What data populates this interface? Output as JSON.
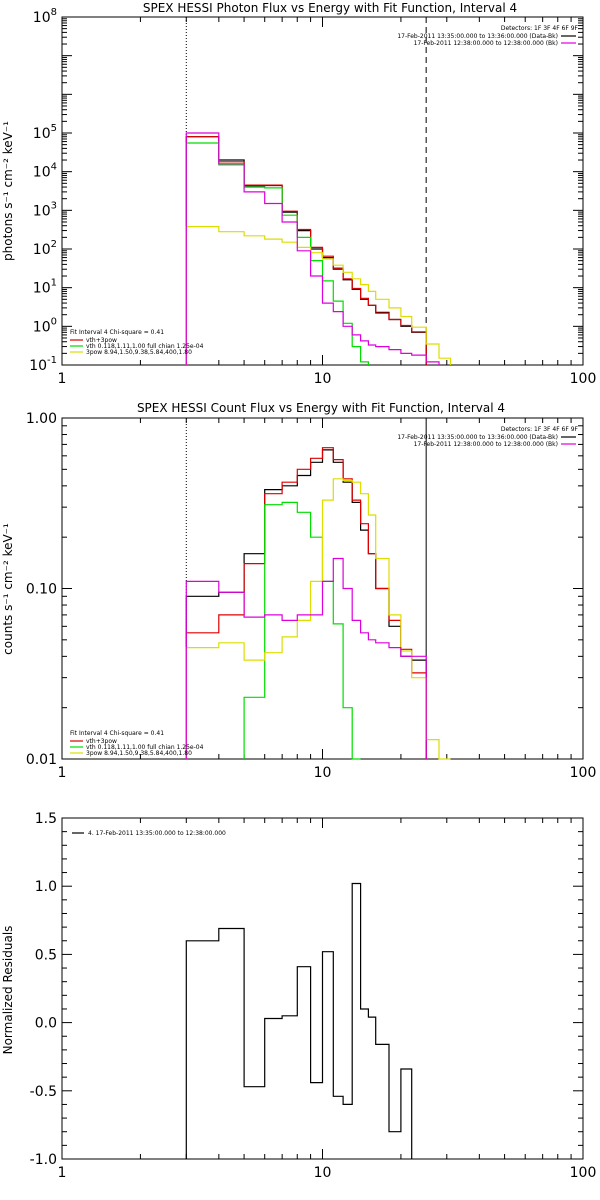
{
  "chart_data": [
    {
      "type": "line",
      "title": "SPEX HESSI Photon Flux vs Energy with Fit Function, Interval 4",
      "ylabel": "photons s⁻¹ cm⁻² keV⁻¹",
      "xlabel": "",
      "xscale": "log",
      "yscale": "log",
      "xlim": [
        1,
        100
      ],
      "ylim": [
        0.1,
        100000000
      ],
      "x_tick_labels": [
        "1",
        "10",
        "100"
      ],
      "y_tick_labels": [
        {
          "value": 0.1,
          "base": "10",
          "exp": "-1"
        },
        {
          "value": 1,
          "base": "10",
          "exp": "0"
        },
        {
          "value": 10,
          "base": "10",
          "exp": "1"
        },
        {
          "value": 100,
          "base": "10",
          "exp": "2"
        },
        {
          "value": 1000,
          "base": "10",
          "exp": "3"
        },
        {
          "value": 10000,
          "base": "10",
          "exp": "4"
        },
        {
          "value": 100000,
          "base": "10",
          "exp": "5"
        },
        {
          "value": 100000000,
          "base": "10",
          "exp": "8"
        }
      ],
      "vlines": [
        {
          "x": 3,
          "style": "dotted"
        },
        {
          "x": 25,
          "style": "dashed"
        }
      ],
      "bin_edges": [
        3,
        4,
        5,
        6,
        7,
        8,
        9,
        10,
        11,
        12,
        13,
        14,
        15,
        16,
        18,
        20,
        22,
        25,
        28,
        31
      ],
      "series": [
        {
          "name": "data",
          "color": "#000000",
          "values": [
            80000,
            20000,
            4300,
            4400,
            900,
            300,
            100,
            60,
            30,
            16,
            9,
            5,
            3.5,
            2.3,
            1.5,
            1.0,
            0.7,
            null,
            null
          ]
        },
        {
          "name": "vth+3pow",
          "color": "#dd0000",
          "values": [
            80000,
            18000,
            4500,
            4500,
            950,
            320,
            110,
            65,
            32,
            17,
            9.5,
            5.3,
            3.5,
            2.2,
            1.5,
            1.05,
            0.72,
            null,
            null
          ]
        },
        {
          "name": "vth 0.118,1.11,1.00 full chian 1.25e-04",
          "color": "#00dd00",
          "values": [
            55000,
            15000,
            4000,
            3800,
            750,
            200,
            50,
            15,
            4.5,
            1.2,
            0.3,
            0.12,
            null,
            null,
            null,
            null,
            null,
            null,
            null
          ]
        },
        {
          "name": "3pow 8.94,1.50,9.38,5.84,400,1.80",
          "color": "#dddd00",
          "values": [
            380,
            280,
            220,
            180,
            150,
            110,
            80,
            55,
            38,
            25,
            17,
            12,
            8,
            5,
            3,
            1.8,
            0.95,
            0.35,
            0.15
          ]
        },
        {
          "name": "",
          "color": "#dd00dd",
          "values": [
            100000,
            16000,
            3000,
            1500,
            500,
            90,
            20,
            4,
            2.4,
            1.0,
            0.6,
            0.42,
            0.33,
            0.3,
            0.25,
            0.2,
            0.18,
            0.12,
            null
          ]
        }
      ],
      "legend_header": "Detectors: 1F 3F 4F 6F 9F",
      "legend_times": [
        {
          "text": "17-Feb-2011 13:35:00.000 to 13:36:00.000 (Data-Bk)",
          "color": "#000000"
        },
        {
          "text": "17-Feb-2011 12:38:00.000 to 12:38:00.000 (Bk)",
          "color": "#dd00dd"
        }
      ],
      "fit_label": "Fit Interval 4    Chi-square = 0.41",
      "fit_legend": [
        {
          "text": "vth+3pow",
          "color": "#dd0000"
        },
        {
          "text": "vth 0.118,1.11,1.00  full chian 1.25e-04",
          "color": "#00dd00"
        },
        {
          "text": "3pow 8.94,1.50,9.38,5.84,400,1.80",
          "color": "#dddd00"
        }
      ]
    },
    {
      "type": "line",
      "title": "SPEX HESSI Count Flux vs Energy with Fit Function, Interval 4",
      "ylabel": "counts s⁻¹ cm⁻² keV⁻¹",
      "xlabel": "",
      "xscale": "log",
      "yscale": "log",
      "xlim": [
        1,
        100
      ],
      "ylim": [
        0.01,
        1.0
      ],
      "x_tick_labels": [
        "1",
        "10",
        "100"
      ],
      "y_tick_labels": [
        {
          "value": 0.01,
          "text": "0.01"
        },
        {
          "value": 0.1,
          "text": "0.10"
        },
        {
          "value": 1.0,
          "text": "1.00"
        }
      ],
      "vlines": [
        {
          "x": 3,
          "style": "dotted"
        },
        {
          "x": 25,
          "style": "solid"
        }
      ],
      "bin_edges": [
        3,
        4,
        5,
        6,
        7,
        8,
        9,
        10,
        11,
        12,
        13,
        14,
        15,
        16,
        18,
        20,
        22,
        25,
        28,
        31
      ],
      "series": [
        {
          "name": "data",
          "color": "#000000",
          "values": [
            0.09,
            0.095,
            0.16,
            0.38,
            0.4,
            0.46,
            0.55,
            0.65,
            0.55,
            0.42,
            0.32,
            0.22,
            0.16,
            0.1,
            0.06,
            0.04,
            0.038,
            null,
            null
          ]
        },
        {
          "name": "vth+3pow",
          "color": "#dd0000",
          "values": [
            0.055,
            0.07,
            0.14,
            0.36,
            0.42,
            0.5,
            0.58,
            0.67,
            0.57,
            0.44,
            0.33,
            0.24,
            0.16,
            0.1,
            0.065,
            0.044,
            0.032,
            null,
            null
          ]
        },
        {
          "name": "vth",
          "color": "#00dd00",
          "values": [
            null,
            null,
            0.023,
            0.31,
            0.32,
            0.28,
            0.2,
            0.11,
            0.062,
            0.02,
            0.01,
            null,
            null,
            null,
            null,
            null,
            null,
            null,
            null
          ]
        },
        {
          "name": "3pow",
          "color": "#dddd00",
          "values": [
            0.045,
            0.048,
            0.038,
            0.042,
            0.052,
            0.065,
            0.11,
            0.33,
            0.44,
            0.43,
            0.42,
            0.36,
            0.27,
            0.15,
            0.07,
            0.043,
            0.03,
            0.013,
            0.009
          ]
        },
        {
          "name": "",
          "color": "#dd00dd",
          "values": [
            0.11,
            0.095,
            0.068,
            0.07,
            0.065,
            0.07,
            0.07,
            0.11,
            0.15,
            0.1,
            0.065,
            0.055,
            0.05,
            0.048,
            0.045,
            0.04,
            0.04,
            null,
            null
          ]
        }
      ],
      "legend_header": "Detectors: 1F 3F 4F 6F 9F",
      "legend_times": [
        {
          "text": "17-Feb-2011 13:35:00.000 to 13:36:00.000 (Data-Bk)",
          "color": "#000000"
        },
        {
          "text": "17-Feb-2011 12:38:00.000 to 12:38:00.000 (Bk)",
          "color": "#dd00dd"
        }
      ],
      "fit_label": "Fit Interval 4    Chi-square = 0.41",
      "fit_legend": [
        {
          "text": "vth+3pow",
          "color": "#dd0000"
        },
        {
          "text": "vth 0.118,1.11,1.00  full chian 1.25e-04",
          "color": "#00dd00"
        },
        {
          "text": "3pow 8.94,1.50,9.38,5.84,400,1.80",
          "color": "#dddd00"
        }
      ]
    },
    {
      "type": "line",
      "title": "",
      "ylabel": "Normalized Residuals",
      "xlabel": "",
      "xscale": "log",
      "yscale": "linear",
      "xlim": [
        1,
        100
      ],
      "ylim": [
        -1.0,
        1.5
      ],
      "x_tick_labels": [
        "1",
        "10",
        "100"
      ],
      "y_tick_labels": [
        {
          "value": -1.0,
          "text": "-1.0"
        },
        {
          "value": -0.5,
          "text": "-0.5"
        },
        {
          "value": 0.0,
          "text": "0.0"
        },
        {
          "value": 0.5,
          "text": "0.5"
        },
        {
          "value": 1.0,
          "text": "1.0"
        },
        {
          "value": 1.5,
          "text": "1.5"
        }
      ],
      "vlines": [],
      "bin_edges": [
        3,
        4,
        5,
        6,
        7,
        8,
        9,
        10,
        11,
        12,
        13,
        14,
        15,
        16,
        18,
        20,
        22,
        25
      ],
      "series": [
        {
          "name": "4. 17-Feb-2011 13:35:00.000 to 12:38:00.000",
          "color": "#000000",
          "values": [
            0.6,
            0.69,
            -0.47,
            0.03,
            0.05,
            0.41,
            -0.44,
            0.52,
            -0.54,
            -0.6,
            1.02,
            0.1,
            0.04,
            -0.16,
            -0.8,
            -0.34,
            null
          ]
        }
      ],
      "legend_line": "4. 17-Feb-2011 13:35:00.000 to 12:38:00.000"
    }
  ]
}
